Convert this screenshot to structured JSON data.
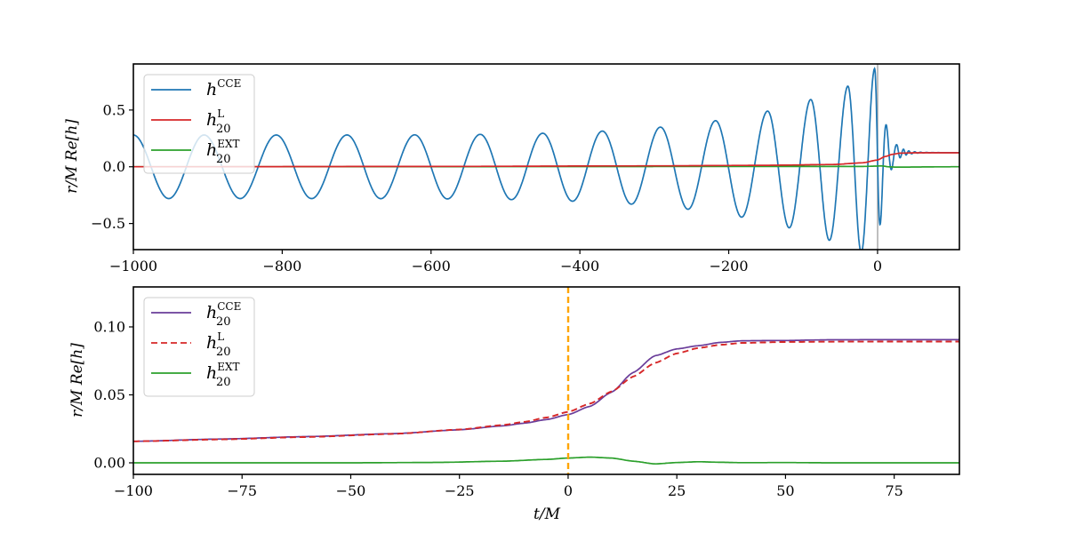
{
  "chart_data": [
    {
      "type": "line",
      "panel": "top",
      "title": "",
      "xlabel": "",
      "ylabel": "r/M Re[h]",
      "xlim": [
        -1000,
        110
      ],
      "ylim": [
        -0.73,
        0.906
      ],
      "xticks": [
        -1000,
        -800,
        -600,
        -400,
        -200,
        0
      ],
      "xtick_labels": [
        "−1000",
        "−800",
        "−600",
        "−400",
        "−200",
        "0"
      ],
      "yticks": [
        0.5,
        0.0,
        -0.5
      ],
      "ytick_labels": [
        "0.5",
        "0.0",
        "−0.5"
      ],
      "grid": false,
      "legend_position": "upper left",
      "vline": {
        "x": 0,
        "color": "#aaaaaa"
      },
      "series": [
        {
          "name": "h^CCE",
          "label_base": "h",
          "label_sup": "CCE",
          "label_sub": "",
          "color": "#1f77b4",
          "style": "solid",
          "description": "inspiral chirp oscillation, amplitude grows from ~0.28 at t=-1000 to peak ~0.83 near t=0, then ringdown decaying to ~0.125",
          "amplitude_start": 0.28,
          "amplitude_peak": 0.83,
          "final_offset": 0.125,
          "peaks_x": [
            -1000,
            -905,
            -808,
            -713,
            -622,
            -534,
            -450,
            -370,
            -292,
            -218,
            -148,
            -90,
            -40,
            -4,
            12,
            26,
            35,
            42,
            50,
            58
          ]
        },
        {
          "name": "h^L_20",
          "label_base": "h",
          "label_sup": "L",
          "label_sub": "20",
          "color": "#d62728",
          "style": "solid",
          "x": [
            -1000,
            -600,
            -300,
            -150,
            -60,
            -20,
            0,
            10,
            20,
            30,
            50,
            100
          ],
          "values": [
            0.0,
            0.003,
            0.008,
            0.013,
            0.02,
            0.035,
            0.06,
            0.09,
            0.11,
            0.12,
            0.123,
            0.123
          ]
        },
        {
          "name": "h^EXT_20",
          "label_base": "h",
          "label_sup": "EXT",
          "label_sub": "20",
          "color": "#2ca02c",
          "style": "solid",
          "x": [
            -1000,
            -20,
            0,
            5,
            15,
            25,
            100
          ],
          "values": [
            0.0,
            0.003,
            0.006,
            0.008,
            0.0,
            -0.003,
            0.0
          ]
        }
      ]
    },
    {
      "type": "line",
      "panel": "bottom",
      "title": "",
      "xlabel": "t/M",
      "ylabel": "r/M Re[h]",
      "xlim": [
        -100,
        90
      ],
      "ylim": [
        -0.0085,
        0.1294
      ],
      "xticks": [
        -100,
        -75,
        -50,
        -25,
        0,
        25,
        50,
        75
      ],
      "xtick_labels": [
        "−100",
        "−75",
        "−50",
        "−25",
        "0",
        "25",
        "50",
        "75"
      ],
      "yticks": [
        0.1,
        0.05,
        0.0
      ],
      "ytick_labels": [
        "0.10",
        "0.05",
        "0.00"
      ],
      "grid": false,
      "legend_position": "upper left",
      "vline": {
        "x": 0,
        "color": "#ffa500",
        "style": "dashed"
      },
      "series": [
        {
          "name": "h^CCE_20",
          "label_base": "h",
          "label_sup": "CCE",
          "label_sub": "20",
          "color": "#6a3d9a",
          "style": "solid",
          "x": [
            -100,
            -80,
            -60,
            -40,
            -25,
            -15,
            -10,
            -5,
            0,
            5,
            10,
            15,
            20,
            25,
            30,
            35,
            40,
            50,
            60,
            75,
            90
          ],
          "values": [
            0.0158,
            0.0175,
            0.0193,
            0.0215,
            0.0243,
            0.0272,
            0.0292,
            0.0318,
            0.0355,
            0.0415,
            0.052,
            0.0665,
            0.0788,
            0.0838,
            0.0862,
            0.0886,
            0.0898,
            0.09,
            0.0905,
            0.0906,
            0.0906
          ]
        },
        {
          "name": "h^L_20",
          "label_base": "h",
          "label_sup": "L",
          "label_sub": "20",
          "color": "#d62728",
          "style": "dashed",
          "x": [
            -100,
            -80,
            -60,
            -40,
            -25,
            -15,
            -10,
            -5,
            0,
            5,
            10,
            15,
            20,
            25,
            30,
            35,
            40,
            50,
            60,
            75,
            90
          ],
          "values": [
            0.0158,
            0.0172,
            0.019,
            0.0213,
            0.0245,
            0.0278,
            0.0302,
            0.0333,
            0.0375,
            0.0435,
            0.0525,
            0.0635,
            0.0735,
            0.0805,
            0.0845,
            0.0868,
            0.0882,
            0.0889,
            0.0891,
            0.0892,
            0.0892
          ]
        },
        {
          "name": "h^EXT_20",
          "label_base": "h",
          "label_sup": "EXT",
          "label_sub": "20",
          "color": "#2ca02c",
          "style": "solid",
          "x": [
            -100,
            -50,
            -30,
            -15,
            -5,
            0,
            5,
            10,
            15,
            20,
            25,
            30,
            35,
            40,
            50,
            60,
            90
          ],
          "values": [
            0.0,
            0.0,
            0.0003,
            0.0012,
            0.0025,
            0.0035,
            0.0042,
            0.0035,
            0.0012,
            -0.0008,
            0.0002,
            0.0008,
            0.0004,
            0.0001,
            0.0002,
            0.0,
            0.0
          ]
        }
      ]
    }
  ]
}
